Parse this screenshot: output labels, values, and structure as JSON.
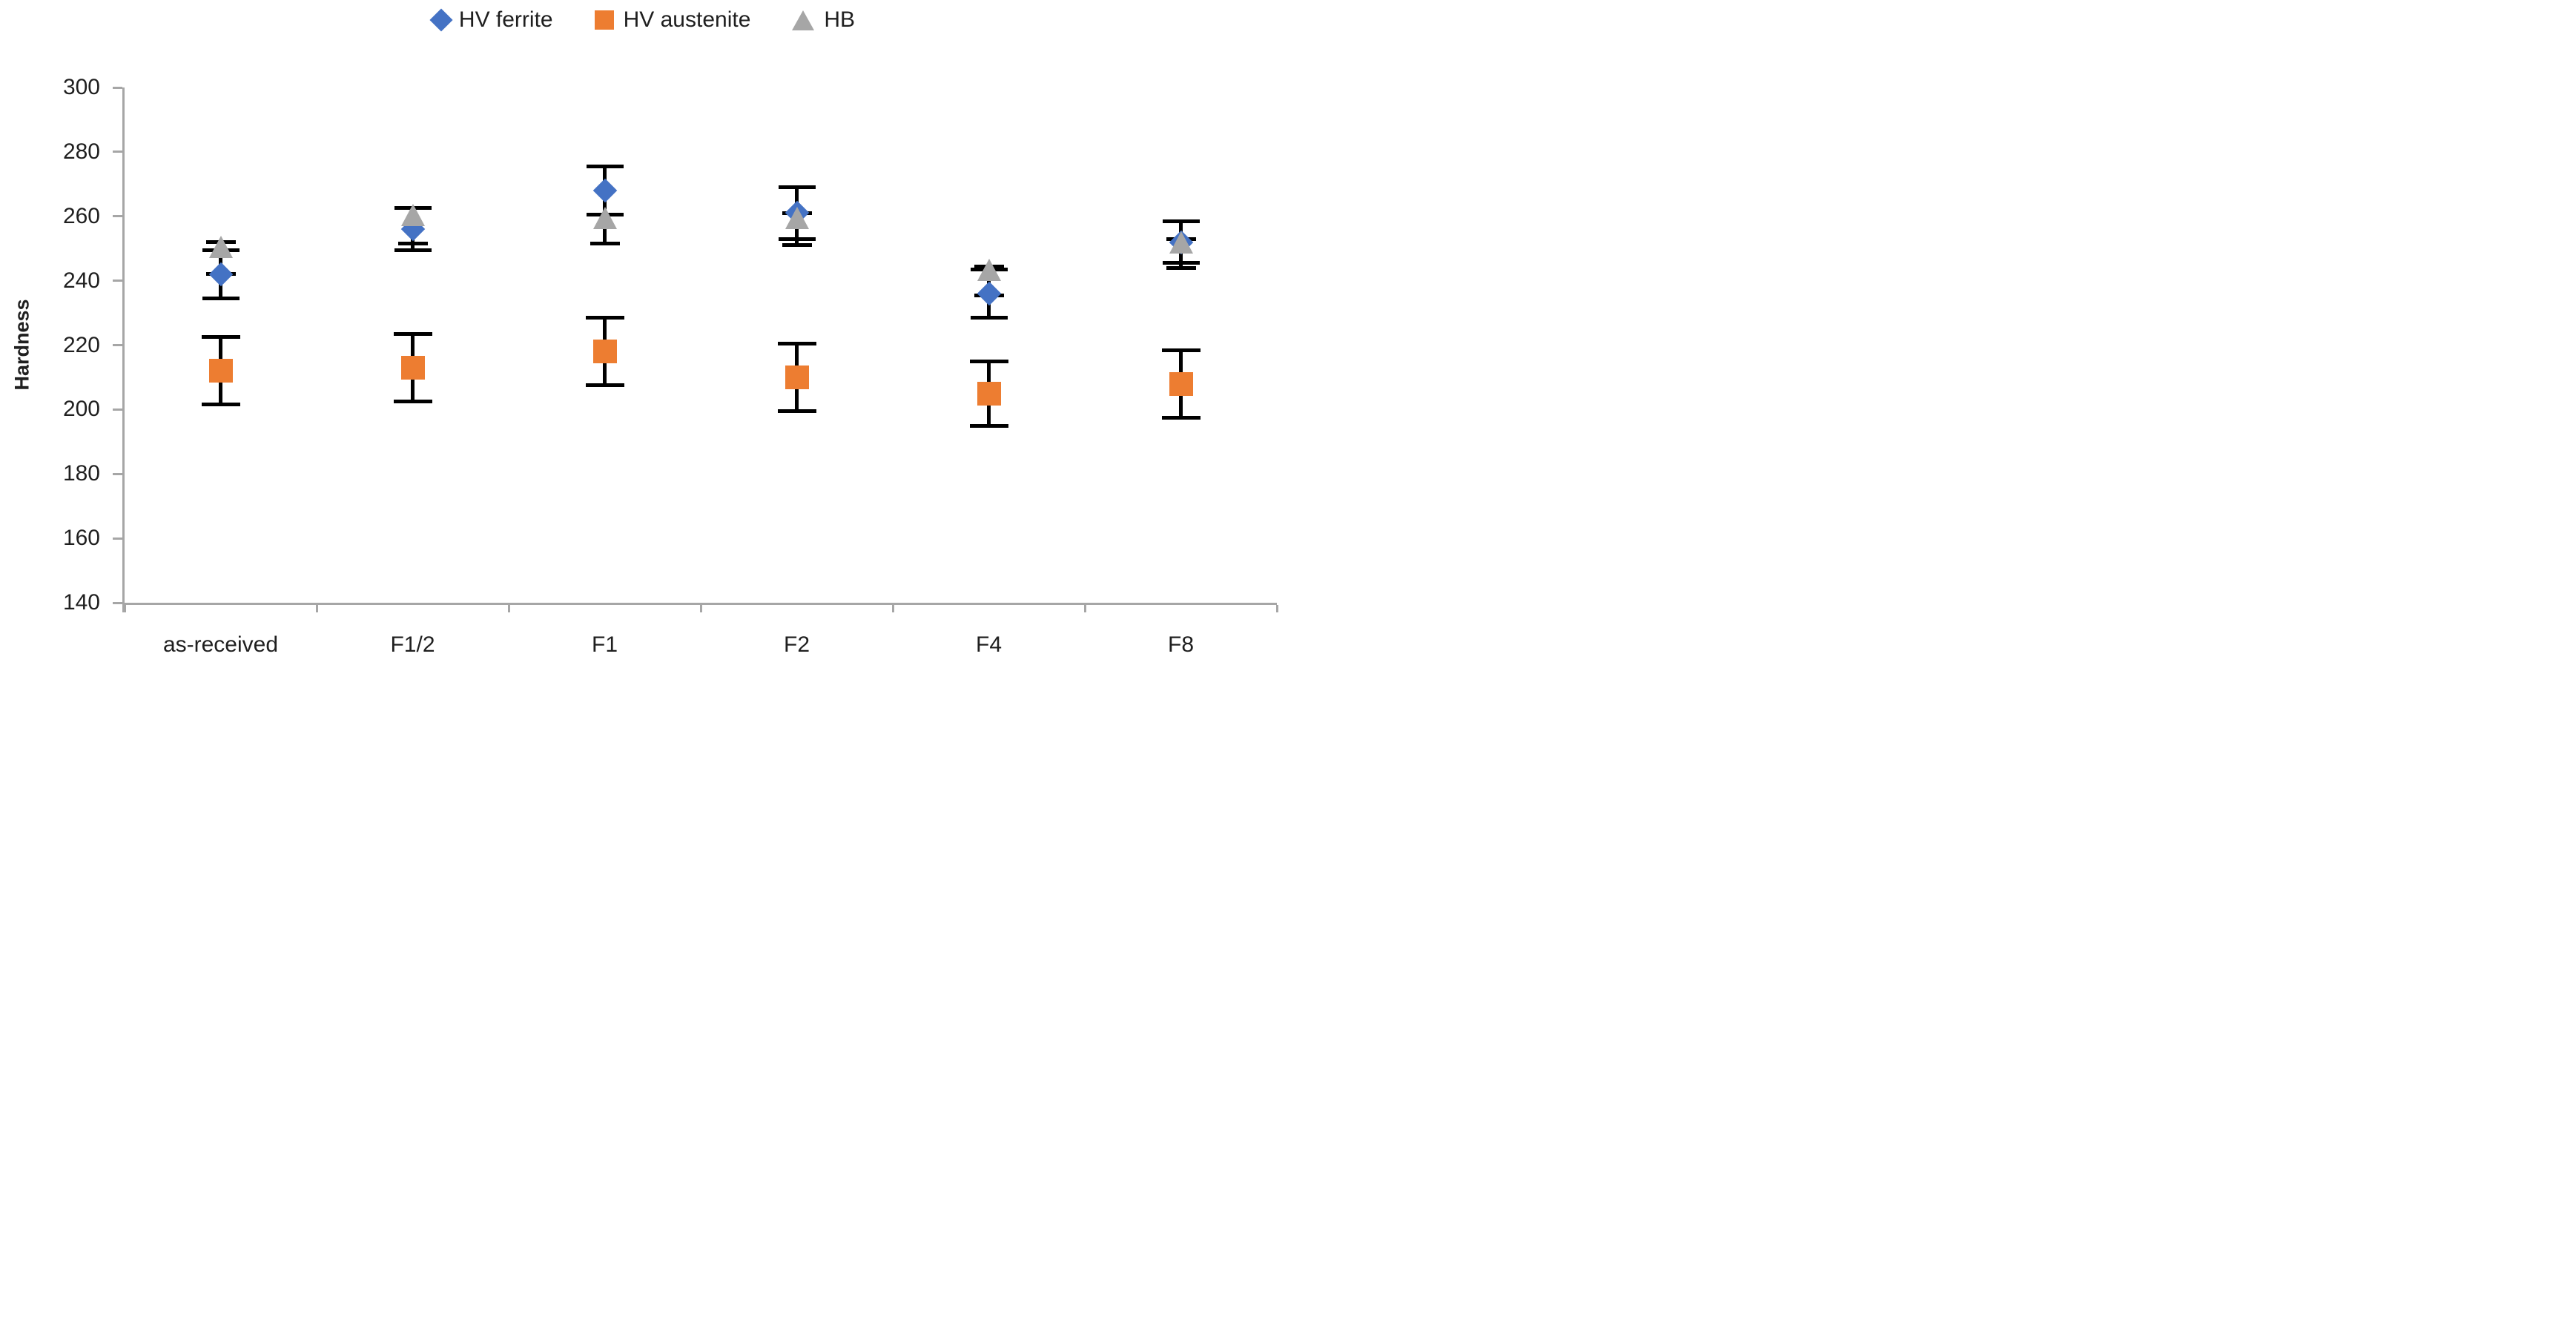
{
  "chart_data": {
    "type": "scatter",
    "title": "",
    "xlabel": "",
    "ylabel": "Hardness",
    "categories": [
      "as-received",
      "F1/2",
      "F1",
      "F2",
      "F4",
      "F8"
    ],
    "ylim": [
      140,
      300
    ],
    "ytick_step": 20,
    "yticks": [
      300,
      280,
      260,
      240,
      220,
      200,
      180,
      160,
      140
    ],
    "grid": "off",
    "legend_position": "top-center",
    "axis_color": "#A6A6A6",
    "error_bar_color": "#000000",
    "series": [
      {
        "name": "HV ferrite",
        "marker": "diamond",
        "color": "#4472C4",
        "values": [
          242,
          256,
          268,
          261,
          236,
          252
        ],
        "err_hi": [
          249.5,
          262.5,
          275.5,
          269,
          243.5,
          258.5
        ],
        "err_lo": [
          234.5,
          249.5,
          260.5,
          253,
          228.5,
          245.5
        ]
      },
      {
        "name": "HV austenite",
        "marker": "square",
        "color": "#ED7D31",
        "values": [
          212,
          213,
          218,
          210,
          205,
          208
        ],
        "err_hi": [
          222.5,
          223.5,
          228.5,
          220.5,
          215,
          218.5
        ],
        "err_lo": [
          201.5,
          202.5,
          207.5,
          199.5,
          195,
          197.5
        ]
      },
      {
        "name": "HB",
        "marker": "triangle",
        "color": "#A6A6A6",
        "values": [
          247,
          257,
          256,
          256,
          240,
          248.5
        ],
        "err_hi": [
          252,
          262.5,
          260.5,
          261,
          244.5,
          253
        ],
        "err_lo": [
          242,
          251.5,
          251.5,
          251,
          235.5,
          244
        ]
      }
    ]
  }
}
